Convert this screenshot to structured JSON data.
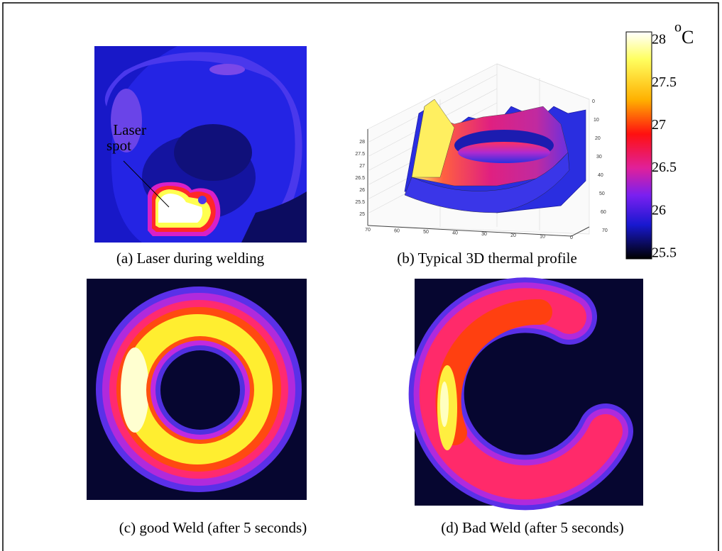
{
  "panels": [
    {
      "caption": "(a) Laser during welding",
      "annotation": [
        "Laser",
        "spot"
      ]
    },
    {
      "caption": "(b) Typical 3D thermal profile",
      "z_ticks": [
        "28",
        "27.5",
        "27",
        "26.5",
        "26",
        "25.5",
        "25"
      ],
      "x_ticks": [
        "70",
        "60",
        "50",
        "40",
        "30",
        "20",
        "10",
        "0"
      ],
      "y_ticks": [
        "0",
        "10",
        "20",
        "30",
        "40",
        "50",
        "60",
        "70"
      ]
    },
    {
      "caption": "(c) good Weld (after 5 seconds)"
    },
    {
      "caption": "(d) Bad Weld (after 5 seconds)"
    }
  ],
  "colorbar": {
    "unit": {
      "degree": "o",
      "symbol": "C"
    },
    "ticks": [
      "28",
      "27.5",
      "27",
      "26.5",
      "26",
      "25.5"
    ]
  }
}
